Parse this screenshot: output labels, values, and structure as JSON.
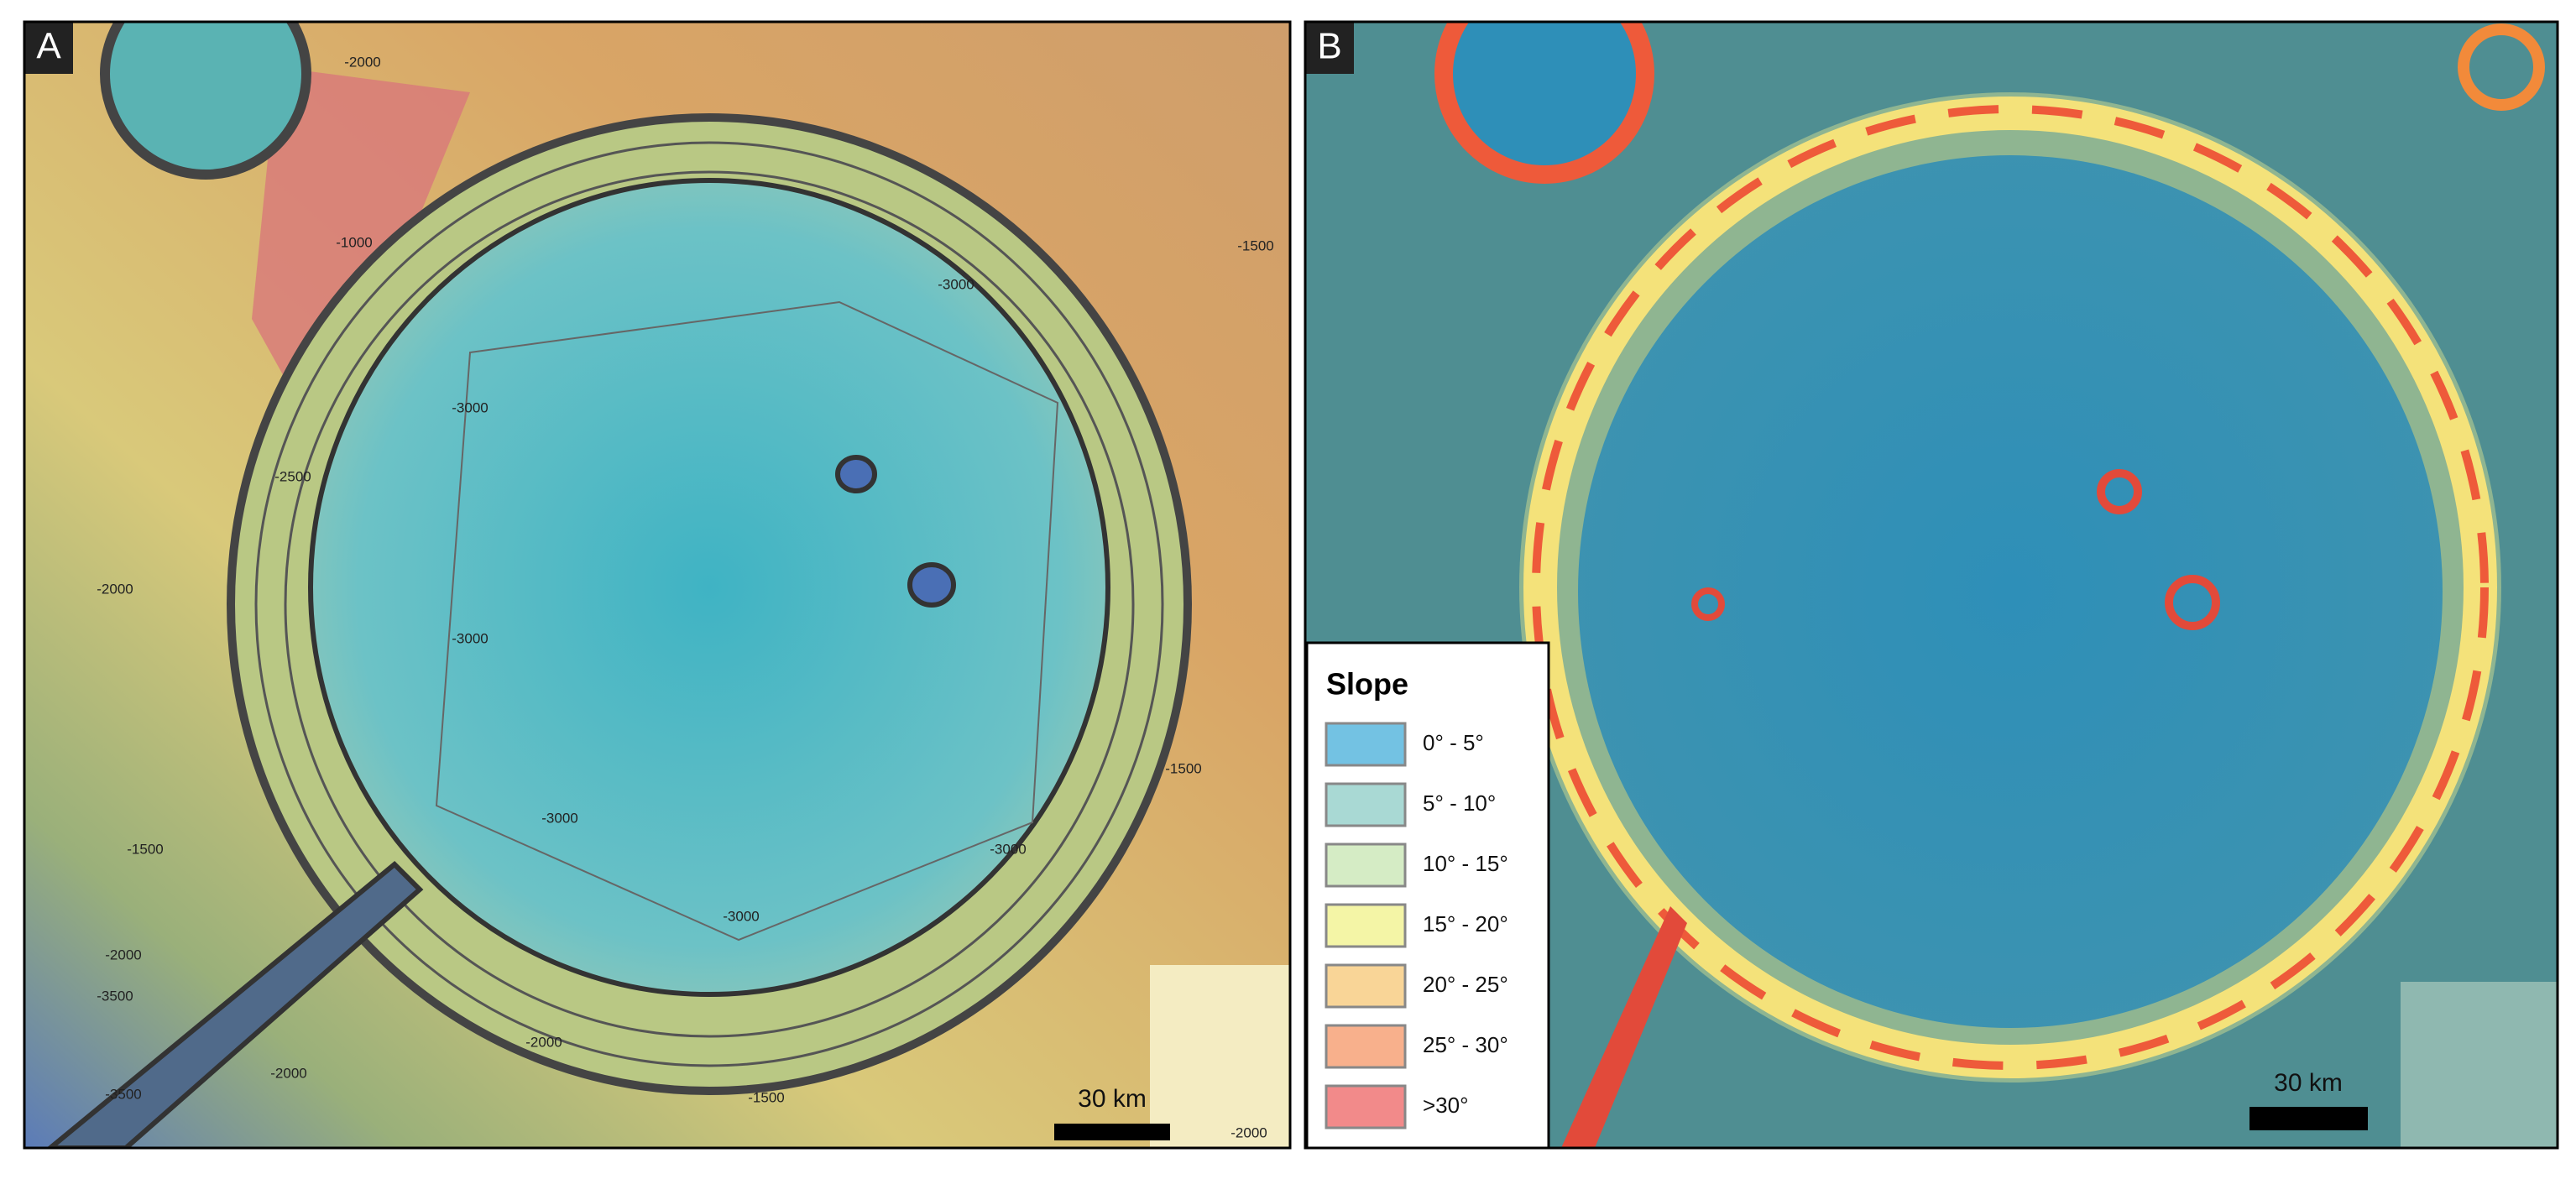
{
  "panels": [
    {
      "letter": "A",
      "scale_bar": "30 km",
      "contour_labels": [
        "-2000",
        "-1000",
        "-1500",
        "-3000",
        "-3000",
        "-2500",
        "-2000",
        "-3000",
        "-1500",
        "-1500",
        "-3000",
        "-3000",
        "-3000",
        "-2000",
        "-3500",
        "-3500",
        "-2000",
        "-2000",
        "-1500",
        "-2000"
      ]
    },
    {
      "letter": "B",
      "scale_bar": "30 km"
    }
  ],
  "legend": {
    "title": "Slope",
    "items": [
      {
        "label": "0° - 5°",
        "color": "#73c2e3"
      },
      {
        "label": "5° - 10°",
        "color": "#a9d9d4"
      },
      {
        "label": "10° - 15°",
        "color": "#d5ecc5"
      },
      {
        "label": "15° - 20°",
        "color": "#f4f5a6"
      },
      {
        "label": "20° - 25°",
        "color": "#f9d597"
      },
      {
        "label": "25° - 30°",
        "color": "#f8b08c"
      },
      {
        "label": ">30°",
        "color": "#f28a8a"
      }
    ]
  }
}
